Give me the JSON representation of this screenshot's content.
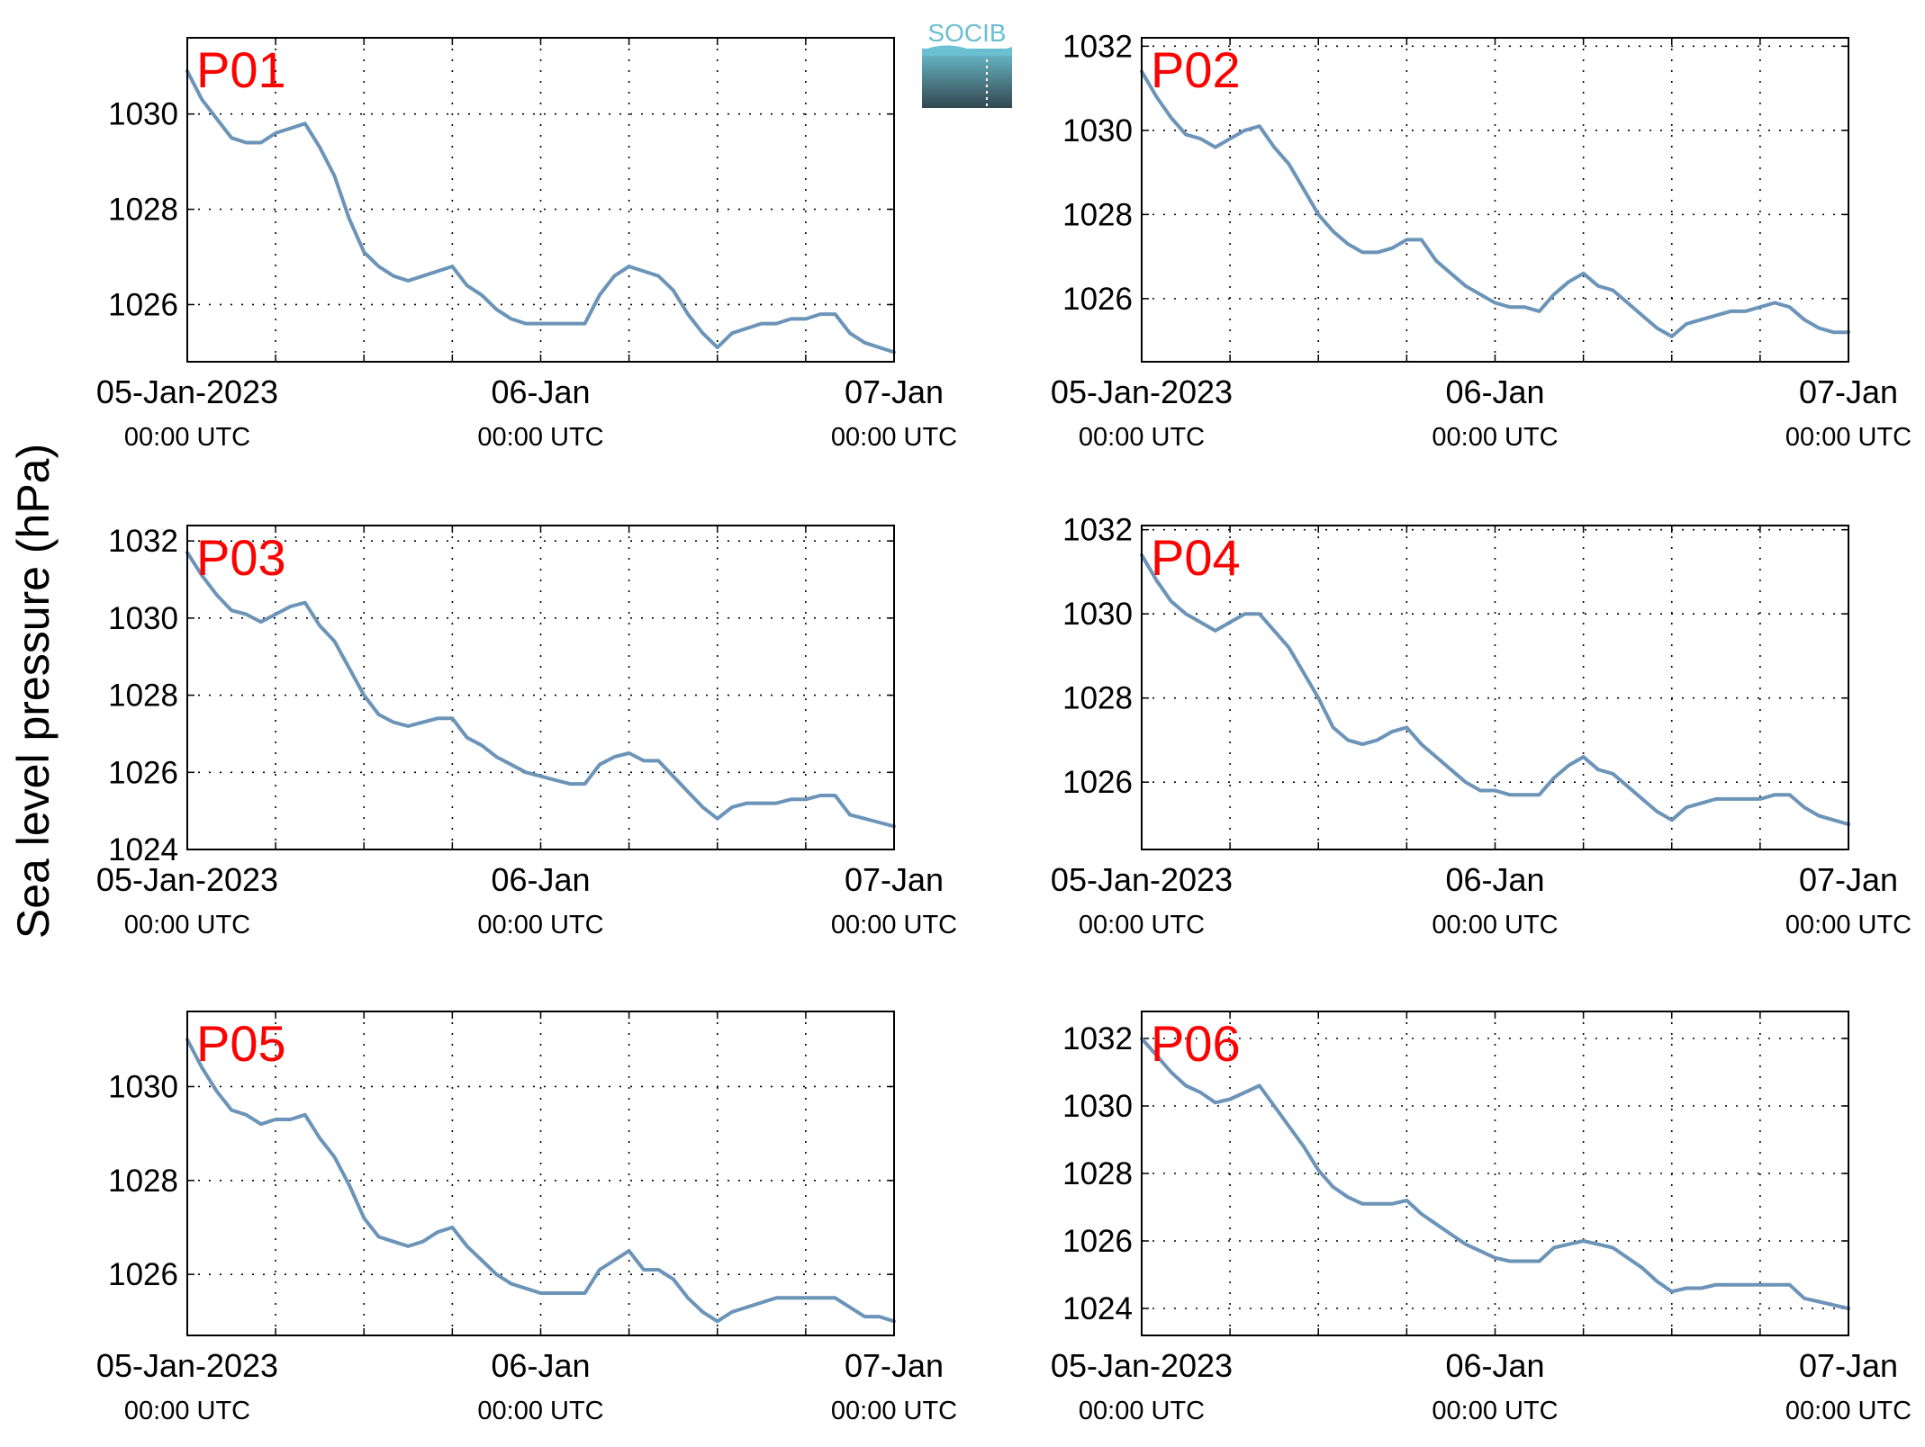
{
  "figure": {
    "ylabel": "Sea level pressure (hPa)",
    "logo": {
      "text": "SOCIB",
      "top_color": "#6bbfd0",
      "bottom_color": "#34474f"
    }
  },
  "style": {
    "line_color": "#6b94b8",
    "grid": "dotted",
    "label_color": "#ff0000"
  },
  "chart_data": [
    {
      "type": "line",
      "label": "P01",
      "x_ticks": [
        {
          "date": "05-Jan-2023",
          "time": "00:00 UTC"
        },
        {
          "date": "06-Jan",
          "time": "00:00 UTC"
        },
        {
          "date": "07-Jan",
          "time": "00:00 UTC"
        }
      ],
      "xlim": [
        0,
        48
      ],
      "ylim": [
        1024.8,
        1031.6
      ],
      "y_ticks": [
        1026,
        1028,
        1030
      ],
      "x_hours": [
        0,
        1,
        2,
        3,
        4,
        5,
        6,
        7,
        8,
        9,
        10,
        11,
        12,
        13,
        14,
        15,
        16,
        17,
        18,
        19,
        20,
        21,
        22,
        23,
        24,
        25,
        26,
        27,
        28,
        29,
        30,
        31,
        32,
        33,
        34,
        35,
        36,
        37,
        38,
        39,
        40,
        41,
        42,
        43,
        44,
        45,
        46,
        47,
        48
      ],
      "values": [
        1030.9,
        1030.3,
        1029.9,
        1029.5,
        1029.4,
        1029.4,
        1029.6,
        1029.7,
        1029.8,
        1029.3,
        1028.7,
        1027.8,
        1027.1,
        1026.8,
        1026.6,
        1026.5,
        1026.6,
        1026.7,
        1026.8,
        1026.4,
        1026.2,
        1025.9,
        1025.7,
        1025.6,
        1025.6,
        1025.6,
        1025.6,
        1025.6,
        1026.2,
        1026.6,
        1026.8,
        1026.7,
        1026.6,
        1026.3,
        1025.8,
        1025.4,
        1025.1,
        1025.4,
        1025.5,
        1025.6,
        1025.6,
        1025.7,
        1025.7,
        1025.8,
        1025.8,
        1025.4,
        1025.2,
        1025.1,
        1025.0
      ]
    },
    {
      "type": "line",
      "label": "P02",
      "x_ticks": [
        {
          "date": "05-Jan-2023",
          "time": "00:00 UTC"
        },
        {
          "date": "06-Jan",
          "time": "00:00 UTC"
        },
        {
          "date": "07-Jan",
          "time": "00:00 UTC"
        }
      ],
      "xlim": [
        0,
        48
      ],
      "ylim": [
        1024.5,
        1032.2
      ],
      "y_ticks": [
        1026,
        1028,
        1030,
        1032
      ],
      "x_hours": [
        0,
        1,
        2,
        3,
        4,
        5,
        6,
        7,
        8,
        9,
        10,
        11,
        12,
        13,
        14,
        15,
        16,
        17,
        18,
        19,
        20,
        21,
        22,
        23,
        24,
        25,
        26,
        27,
        28,
        29,
        30,
        31,
        32,
        33,
        34,
        35,
        36,
        37,
        38,
        39,
        40,
        41,
        42,
        43,
        44,
        45,
        46,
        47,
        48
      ],
      "values": [
        1031.4,
        1030.8,
        1030.3,
        1029.9,
        1029.8,
        1029.6,
        1029.8,
        1030.0,
        1030.1,
        1029.6,
        1029.2,
        1028.6,
        1028.0,
        1027.6,
        1027.3,
        1027.1,
        1027.1,
        1027.2,
        1027.4,
        1027.4,
        1026.9,
        1026.6,
        1026.3,
        1026.1,
        1025.9,
        1025.8,
        1025.8,
        1025.7,
        1026.1,
        1026.4,
        1026.6,
        1026.3,
        1026.2,
        1025.9,
        1025.6,
        1025.3,
        1025.1,
        1025.4,
        1025.5,
        1025.6,
        1025.7,
        1025.7,
        1025.8,
        1025.9,
        1025.8,
        1025.5,
        1025.3,
        1025.2,
        1025.2
      ]
    },
    {
      "type": "line",
      "label": "P03",
      "x_ticks": [
        {
          "date": "05-Jan-2023",
          "time": "00:00 UTC"
        },
        {
          "date": "06-Jan",
          "time": "00:00 UTC"
        },
        {
          "date": "07-Jan",
          "time": "00:00 UTC"
        }
      ],
      "xlim": [
        0,
        48
      ],
      "ylim": [
        1024.0,
        1032.4
      ],
      "y_ticks": [
        1024,
        1026,
        1028,
        1030,
        1032
      ],
      "x_hours": [
        0,
        1,
        2,
        3,
        4,
        5,
        6,
        7,
        8,
        9,
        10,
        11,
        12,
        13,
        14,
        15,
        16,
        17,
        18,
        19,
        20,
        21,
        22,
        23,
        24,
        25,
        26,
        27,
        28,
        29,
        30,
        31,
        32,
        33,
        34,
        35,
        36,
        37,
        38,
        39,
        40,
        41,
        42,
        43,
        44,
        45,
        46,
        47,
        48
      ],
      "values": [
        1031.7,
        1031.1,
        1030.6,
        1030.2,
        1030.1,
        1029.9,
        1030.1,
        1030.3,
        1030.4,
        1029.8,
        1029.4,
        1028.7,
        1028.0,
        1027.5,
        1027.3,
        1027.2,
        1027.3,
        1027.4,
        1027.4,
        1026.9,
        1026.7,
        1026.4,
        1026.2,
        1026.0,
        1025.9,
        1025.8,
        1025.7,
        1025.7,
        1026.2,
        1026.4,
        1026.5,
        1026.3,
        1026.3,
        1025.9,
        1025.5,
        1025.1,
        1024.8,
        1025.1,
        1025.2,
        1025.2,
        1025.2,
        1025.3,
        1025.3,
        1025.4,
        1025.4,
        1024.9,
        1024.8,
        1024.7,
        1024.6
      ]
    },
    {
      "type": "line",
      "label": "P04",
      "x_ticks": [
        {
          "date": "05-Jan-2023",
          "time": "00:00 UTC"
        },
        {
          "date": "06-Jan",
          "time": "00:00 UTC"
        },
        {
          "date": "07-Jan",
          "time": "00:00 UTC"
        }
      ],
      "xlim": [
        0,
        48
      ],
      "ylim": [
        1024.4,
        1032.1
      ],
      "y_ticks": [
        1026,
        1028,
        1030,
        1032
      ],
      "x_hours": [
        0,
        1,
        2,
        3,
        4,
        5,
        6,
        7,
        8,
        9,
        10,
        11,
        12,
        13,
        14,
        15,
        16,
        17,
        18,
        19,
        20,
        21,
        22,
        23,
        24,
        25,
        26,
        27,
        28,
        29,
        30,
        31,
        32,
        33,
        34,
        35,
        36,
        37,
        38,
        39,
        40,
        41,
        42,
        43,
        44,
        45,
        46,
        47,
        48
      ],
      "values": [
        1031.4,
        1030.8,
        1030.3,
        1030.0,
        1029.8,
        1029.6,
        1029.8,
        1030.0,
        1030.0,
        1029.6,
        1029.2,
        1028.6,
        1028.0,
        1027.3,
        1027.0,
        1026.9,
        1027.0,
        1027.2,
        1027.3,
        1026.9,
        1026.6,
        1026.3,
        1026.0,
        1025.8,
        1025.8,
        1025.7,
        1025.7,
        1025.7,
        1026.1,
        1026.4,
        1026.6,
        1026.3,
        1026.2,
        1025.9,
        1025.6,
        1025.3,
        1025.1,
        1025.4,
        1025.5,
        1025.6,
        1025.6,
        1025.6,
        1025.6,
        1025.7,
        1025.7,
        1025.4,
        1025.2,
        1025.1,
        1025.0
      ]
    },
    {
      "type": "line",
      "label": "P05",
      "x_ticks": [
        {
          "date": "05-Jan-2023",
          "time": "00:00 UTC"
        },
        {
          "date": "06-Jan",
          "time": "00:00 UTC"
        },
        {
          "date": "07-Jan",
          "time": "00:00 UTC"
        }
      ],
      "xlim": [
        0,
        48
      ],
      "ylim": [
        1024.7,
        1031.6
      ],
      "y_ticks": [
        1026,
        1028,
        1030
      ],
      "x_hours": [
        0,
        1,
        2,
        3,
        4,
        5,
        6,
        7,
        8,
        9,
        10,
        11,
        12,
        13,
        14,
        15,
        16,
        17,
        18,
        19,
        20,
        21,
        22,
        23,
        24,
        25,
        26,
        27,
        28,
        29,
        30,
        31,
        32,
        33,
        34,
        35,
        36,
        37,
        38,
        39,
        40,
        41,
        42,
        43,
        44,
        45,
        46,
        47,
        48
      ],
      "values": [
        1031.0,
        1030.4,
        1029.9,
        1029.5,
        1029.4,
        1029.2,
        1029.3,
        1029.3,
        1029.4,
        1028.9,
        1028.5,
        1027.9,
        1027.2,
        1026.8,
        1026.7,
        1026.6,
        1026.7,
        1026.9,
        1027.0,
        1026.6,
        1026.3,
        1026.0,
        1025.8,
        1025.7,
        1025.6,
        1025.6,
        1025.6,
        1025.6,
        1026.1,
        1026.3,
        1026.5,
        1026.1,
        1026.1,
        1025.9,
        1025.5,
        1025.2,
        1025.0,
        1025.2,
        1025.3,
        1025.4,
        1025.5,
        1025.5,
        1025.5,
        1025.5,
        1025.5,
        1025.3,
        1025.1,
        1025.1,
        1025.0
      ]
    },
    {
      "type": "line",
      "label": "P06",
      "x_ticks": [
        {
          "date": "05-Jan-2023",
          "time": "00:00 UTC"
        },
        {
          "date": "06-Jan",
          "time": "00:00 UTC"
        },
        {
          "date": "07-Jan",
          "time": "00:00 UTC"
        }
      ],
      "xlim": [
        0,
        48
      ],
      "ylim": [
        1023.2,
        1032.8
      ],
      "y_ticks": [
        1024,
        1026,
        1028,
        1030,
        1032
      ],
      "x_hours": [
        0,
        1,
        2,
        3,
        4,
        5,
        6,
        7,
        8,
        9,
        10,
        11,
        12,
        13,
        14,
        15,
        16,
        17,
        18,
        19,
        20,
        21,
        22,
        23,
        24,
        25,
        26,
        27,
        28,
        29,
        30,
        31,
        32,
        33,
        34,
        35,
        36,
        37,
        38,
        39,
        40,
        41,
        42,
        43,
        44,
        45,
        46,
        47,
        48
      ],
      "values": [
        1032.0,
        1031.5,
        1031.0,
        1030.6,
        1030.4,
        1030.1,
        1030.2,
        1030.4,
        1030.6,
        1030.0,
        1029.4,
        1028.8,
        1028.1,
        1027.6,
        1027.3,
        1027.1,
        1027.1,
        1027.1,
        1027.2,
        1026.8,
        1026.5,
        1026.2,
        1025.9,
        1025.7,
        1025.5,
        1025.4,
        1025.4,
        1025.4,
        1025.8,
        1025.9,
        1026.0,
        1025.9,
        1025.8,
        1025.5,
        1025.2,
        1024.8,
        1024.5,
        1024.6,
        1024.6,
        1024.7,
        1024.7,
        1024.7,
        1024.7,
        1024.7,
        1024.7,
        1024.3,
        1024.2,
        1024.1,
        1024.0
      ]
    }
  ]
}
